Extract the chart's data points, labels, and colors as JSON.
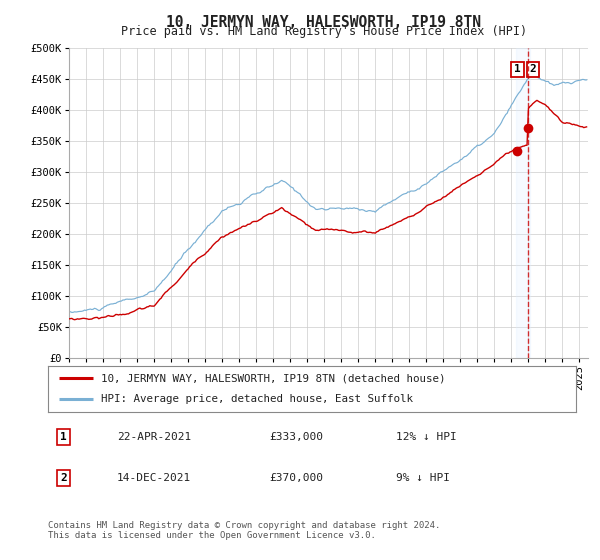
{
  "title": "10, JERMYN WAY, HALESWORTH, IP19 8TN",
  "subtitle": "Price paid vs. HM Land Registry's House Price Index (HPI)",
  "ylim": [
    0,
    500000
  ],
  "yticks": [
    0,
    50000,
    100000,
    150000,
    200000,
    250000,
    300000,
    350000,
    400000,
    450000,
    500000
  ],
  "ytick_labels": [
    "£0",
    "£50K",
    "£100K",
    "£150K",
    "£200K",
    "£250K",
    "£300K",
    "£350K",
    "£400K",
    "£450K",
    "£500K"
  ],
  "xlim_start": 1995.0,
  "xlim_end": 2025.5,
  "xtick_years": [
    1995,
    1996,
    1997,
    1998,
    1999,
    2000,
    2001,
    2002,
    2003,
    2004,
    2005,
    2006,
    2007,
    2008,
    2009,
    2010,
    2011,
    2012,
    2013,
    2014,
    2015,
    2016,
    2017,
    2018,
    2019,
    2020,
    2021,
    2022,
    2023,
    2024,
    2025
  ],
  "red_line_color": "#cc0000",
  "blue_line_color": "#7ab0d4",
  "vline_color": "#cc0000",
  "vline_x": 2021.95,
  "highlight_fill_color": "#ddeeff",
  "marker1_x": 2021.31,
  "marker1_y": 333000,
  "marker2_x": 2021.96,
  "marker2_y": 370000,
  "marker_color": "#cc0000",
  "marker_size": 7,
  "legend_red_label": "10, JERMYN WAY, HALESWORTH, IP19 8TN (detached house)",
  "legend_blue_label": "HPI: Average price, detached house, East Suffolk",
  "transaction1_num": "1",
  "transaction1_date": "22-APR-2021",
  "transaction1_price": "£333,000",
  "transaction1_hpi": "12% ↓ HPI",
  "transaction2_num": "2",
  "transaction2_date": "14-DEC-2021",
  "transaction2_price": "£370,000",
  "transaction2_hpi": "9% ↓ HPI",
  "footer_line1": "Contains HM Land Registry data © Crown copyright and database right 2024.",
  "footer_line2": "This data is licensed under the Open Government Licence v3.0.",
  "bg_color": "#ffffff",
  "grid_color": "#cccccc"
}
